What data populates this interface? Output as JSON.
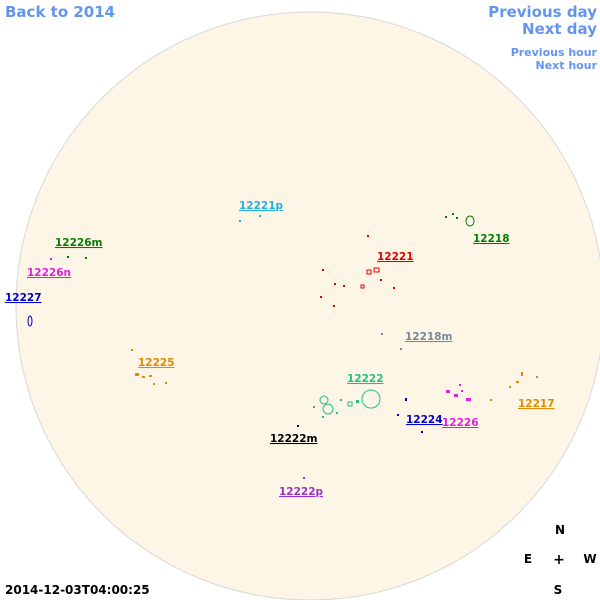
{
  "nav": {
    "back": "Back to 2014",
    "previous_day": "Previous day",
    "next_day": "Next day",
    "previous_hour": "Previous hour",
    "next_hour": "Next hour"
  },
  "regions": [
    {
      "label": "12221p",
      "color": "#20b0e8"
    },
    {
      "label": "12226m",
      "color": "#008000"
    },
    {
      "label": "12218",
      "color": "#008000"
    },
    {
      "label": "12226n",
      "color": "#e020e0"
    },
    {
      "label": "12221",
      "color": "#e00000"
    },
    {
      "label": "12227",
      "color": "#0000cc"
    },
    {
      "label": "12218m",
      "color": "#778899"
    },
    {
      "label": "12225",
      "color": "#e08a00"
    },
    {
      "label": "12222",
      "color": "#20c080"
    },
    {
      "label": "12217",
      "color": "#e08a00"
    },
    {
      "label": "12224",
      "color": "#0000cc"
    },
    {
      "label": "12226",
      "color": "#e020e0"
    },
    {
      "label": "12222m",
      "color": "#000000"
    },
    {
      "label": "12222p",
      "color": "#9932cc"
    }
  ],
  "timestamp": "2014-12-03T04:00:25",
  "compass": {
    "north": "N",
    "east": "E",
    "center": "+",
    "west": "W",
    "south": "S"
  }
}
